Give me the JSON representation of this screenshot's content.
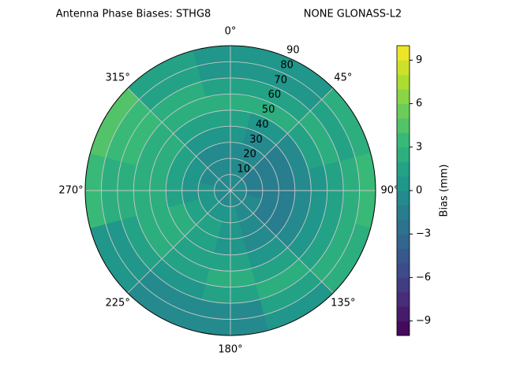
{
  "chart_data": {
    "type": "polar_contour",
    "title": "Antenna Phase Biases: STHG8",
    "subtitle": "NONE GLONASS-L2",
    "colorbar_label": "Bias (mm)",
    "colormap": "viridis",
    "clim": [
      -10,
      10
    ],
    "cticks": [
      {
        "value": -9,
        "label": "−9"
      },
      {
        "value": -6,
        "label": "−6"
      },
      {
        "value": -3,
        "label": "−3"
      },
      0,
      3,
      6,
      9
    ],
    "rlim": [
      0,
      90
    ],
    "rticks": [
      10,
      20,
      30,
      40,
      50,
      60,
      70,
      80,
      90
    ],
    "thetaticks": [
      {
        "value": 0,
        "label": "0°"
      },
      {
        "value": 45,
        "label": "45°"
      },
      {
        "value": 90,
        "label": "90°"
      },
      {
        "value": 135,
        "label": "135°"
      },
      {
        "value": 180,
        "label": "180°"
      },
      {
        "value": 225,
        "label": "225°"
      },
      {
        "value": 270,
        "label": "270°"
      },
      {
        "value": 315,
        "label": "315°"
      }
    ],
    "grid": true,
    "theta": [
      0,
      30,
      60,
      90,
      120,
      150,
      180,
      210,
      240,
      270,
      300,
      330
    ],
    "r": [
      5,
      15,
      25,
      35,
      45,
      55,
      65,
      75,
      85
    ],
    "z": [
      [
        -1,
        -1,
        -1,
        -1,
        -1,
        -1,
        -1,
        -1,
        -1,
        -1,
        -1,
        -1
      ],
      [
        -1,
        -1,
        -2,
        -2,
        -1,
        -1,
        0,
        0,
        0,
        0,
        -1,
        -1
      ],
      [
        -1,
        -1,
        -2,
        -2,
        -2,
        -1,
        0,
        1,
        1,
        0,
        0,
        -1
      ],
      [
        0,
        -1,
        -2,
        -2,
        -2,
        -1,
        0,
        1,
        2,
        1,
        1,
        0
      ],
      [
        1,
        0,
        -1,
        -1,
        -1,
        0,
        1,
        1,
        2,
        2,
        2,
        1
      ],
      [
        2,
        2,
        1,
        0,
        0,
        1,
        2,
        1,
        2,
        2,
        2,
        2
      ],
      [
        1,
        1,
        2,
        1,
        1,
        2,
        1,
        0,
        1,
        2,
        3,
        2
      ],
      [
        0,
        0,
        1,
        2,
        2,
        1,
        -1,
        -1,
        0,
        2,
        3,
        1
      ],
      [
        0,
        0,
        2,
        3,
        2,
        0,
        -1,
        -1,
        0,
        3,
        4,
        1
      ]
    ]
  }
}
